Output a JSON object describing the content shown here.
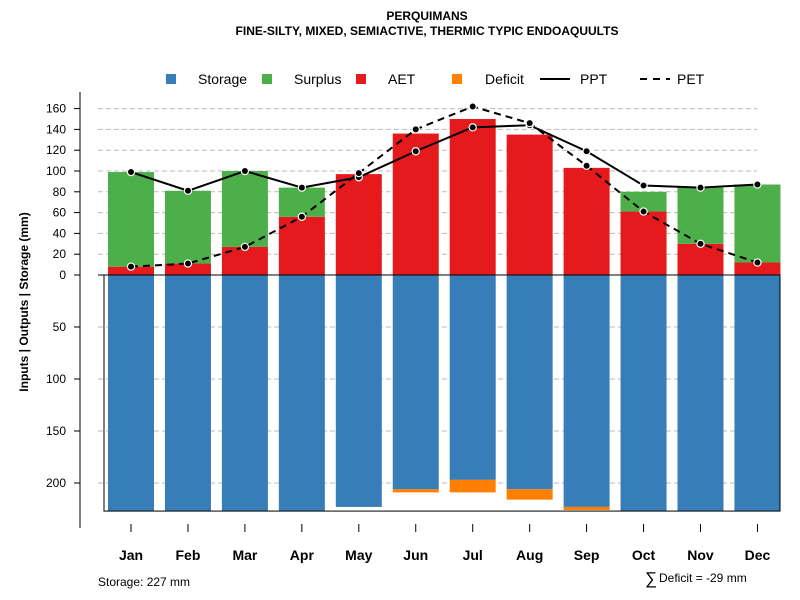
{
  "chart_data": {
    "type": "bar",
    "title": "PERQUIMANS",
    "subtitle": "FINE-SILTY, MIXED, SEMIACTIVE, THERMIC TYPIC ENDOAQUULTS",
    "ylabel": "Inputs | Outputs | Storage    (mm)",
    "categories": [
      "Jan",
      "Feb",
      "Mar",
      "Apr",
      "May",
      "Jun",
      "Jul",
      "Aug",
      "Sep",
      "Oct",
      "Nov",
      "Dec"
    ],
    "upper_ticks": [
      "0",
      "20",
      "40",
      "60",
      "80",
      "100",
      "120",
      "140",
      "160"
    ],
    "lower_ticks": [
      "50",
      "100",
      "150",
      "200"
    ],
    "upper_ylim": [
      0,
      170
    ],
    "lower_ylim": [
      0,
      227
    ],
    "grid": true,
    "legend_position": "top",
    "legend": [
      {
        "name": "Storage",
        "kind": "square",
        "color": "#377EB8"
      },
      {
        "name": "Surplus",
        "kind": "square",
        "color": "#4DAF4A"
      },
      {
        "name": "AET",
        "kind": "square",
        "color": "#E41A1C"
      },
      {
        "name": "Deficit",
        "kind": "square",
        "color": "#FF7F00"
      },
      {
        "name": "PPT",
        "kind": "solid-line",
        "color": "#000000"
      },
      {
        "name": "PET",
        "kind": "dashed-line",
        "color": "#000000"
      }
    ],
    "series": [
      {
        "name": "AET",
        "color": "#E41A1C",
        "values": [
          8,
          11,
          27,
          56,
          97,
          136,
          150,
          135,
          103,
          61,
          30,
          12
        ]
      },
      {
        "name": "Surplus",
        "color": "#4DAF4A",
        "values": [
          91,
          70,
          73,
          28,
          0,
          0,
          0,
          0,
          0,
          19,
          54,
          75
        ]
      },
      {
        "name": "PPT",
        "color": "#000000",
        "values": [
          99,
          81,
          100,
          84,
          94,
          119,
          142,
          144,
          119,
          86,
          84,
          87
        ]
      },
      {
        "name": "PET",
        "color": "#000000",
        "values": [
          8,
          11,
          27,
          56,
          98,
          140,
          162,
          146,
          105,
          61,
          30,
          12
        ]
      },
      {
        "name": "Storage",
        "color": "#377EB8",
        "values": [
          227,
          227,
          227,
          227,
          223,
          206,
          197,
          206,
          223,
          227,
          227,
          227
        ]
      },
      {
        "name": "Deficit",
        "color": "#FF7F00",
        "values": [
          0,
          0,
          0,
          0,
          0,
          3,
          12,
          10,
          3,
          0,
          0,
          0
        ]
      }
    ],
    "footer_left": "Storage: 227 mm",
    "footer_right_symbol": "∑",
    "footer_right": "Deficit = -29 mm"
  }
}
